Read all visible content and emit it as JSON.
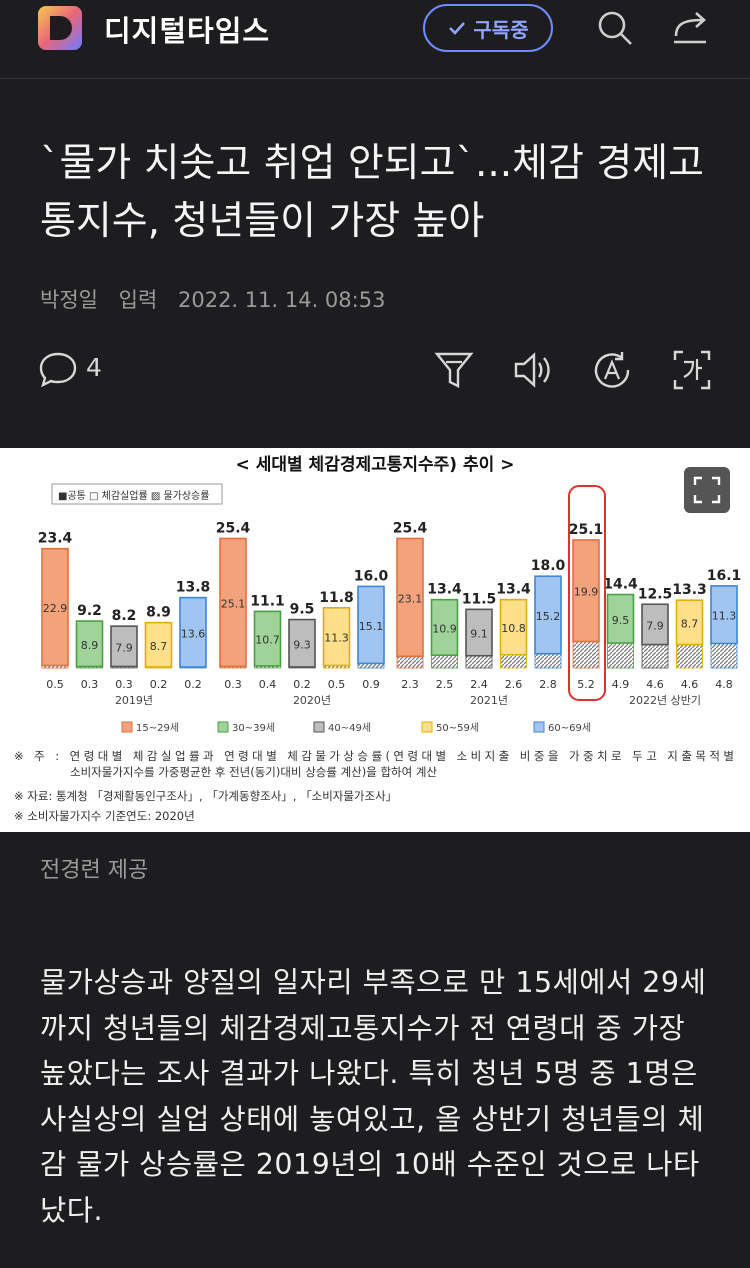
{
  "header": {
    "brand": "디지털타임스",
    "subscribe_label": "구독중",
    "icons": [
      "logo-icon",
      "check-icon",
      "search-icon",
      "share-icon"
    ]
  },
  "article": {
    "title": "`물가 치솟고 취업 안되고`...체감 경제고통지수, 청년들이 가장 높아",
    "author": "박정일",
    "published_label": "입력",
    "published": "2022. 11. 14. 08:53",
    "comment_count": "4",
    "image_caption": "전경련 제공",
    "body": "물가상승과 양질의 일자리 부족으로 만 15세에서 29세까지 청년들의 체감경제고통지수가 전 연령대 중 가장 높았다는 조사 결과가 나왔다. 특히 청년 5명 중 1명은 사실상의 실업 상태에 놓여있고, 올 상반기 청년들의 체감 물가 상승률은 2019년의 10배 수준인 것으로 나타났다."
  },
  "action_icons": [
    "comment-icon",
    "summary-icon",
    "tts-icon",
    "translate-icon",
    "font-size-icon"
  ],
  "chart_data": {
    "type": "bar",
    "title": "< 세대별 체감경제고통지수주) 추이 >",
    "legend_top": [
      "■공통",
      "□ 체감실업률",
      "▨ 물가상승률"
    ],
    "categories": [
      "2019년",
      "2020년",
      "2021년",
      "2022년 상반기"
    ],
    "age_groups": [
      "15~29세",
      "30~39세",
      "40~49세",
      "50~59세",
      "60~69세"
    ],
    "colors": {
      "15~29세": "#f4a27c",
      "30~39세": "#9fd39a",
      "40~49세": "#bdbdbd",
      "50~59세": "#ffe08a",
      "60~69세": "#9fc5f0"
    },
    "edge_colors": {
      "15~29세": "#e4703e",
      "30~39세": "#4aa043",
      "40~49세": "#555555",
      "50~59세": "#e0b000",
      "60~69세": "#3f86d6"
    },
    "series": [
      {
        "name": "15~29세",
        "total": [
          23.4,
          25.4,
          25.4,
          25.1
        ],
        "unemployment": [
          22.9,
          25.1,
          23.1,
          19.9
        ],
        "inflation": [
          0.5,
          0.3,
          2.3,
          5.2
        ]
      },
      {
        "name": "30~39세",
        "total": [
          9.2,
          11.1,
          13.4,
          14.4
        ],
        "unemployment": [
          8.9,
          10.7,
          10.9,
          9.5
        ],
        "inflation": [
          0.3,
          0.4,
          2.5,
          4.9
        ]
      },
      {
        "name": "40~49세",
        "total": [
          8.2,
          9.5,
          11.5,
          12.5
        ],
        "unemployment": [
          7.9,
          9.3,
          9.1,
          7.9
        ],
        "inflation": [
          0.3,
          0.2,
          2.4,
          4.6
        ]
      },
      {
        "name": "50~59세",
        "total": [
          8.9,
          11.8,
          13.4,
          13.3
        ],
        "unemployment": [
          8.7,
          11.3,
          10.8,
          8.7
        ],
        "inflation": [
          0.2,
          0.5,
          2.6,
          4.6
        ]
      },
      {
        "name": "60~69세",
        "total": [
          13.8,
          16.0,
          18.0,
          16.1
        ],
        "unemployment": [
          13.6,
          15.1,
          15.2,
          11.3
        ],
        "inflation": [
          0.2,
          0.9,
          2.8,
          4.8
        ]
      }
    ],
    "highlight_color": "#e03030",
    "notes": [
      "※ 주 : 연령대별 체감실업률과 연령대별 체감물가상승률(연령대별 소비지출 비중을 가중치로 두고 지출목적별",
      "소비자물가지수를 가중평균한 후 전년(동기)대비 상승률 계산)을 합하여 계산",
      "※ 자료: 통계청 「경제활동인구조사」, 「가계동향조사」, 「소비자물가조사」",
      "※ 소비자물가지수 기준연도: 2020년"
    ]
  }
}
